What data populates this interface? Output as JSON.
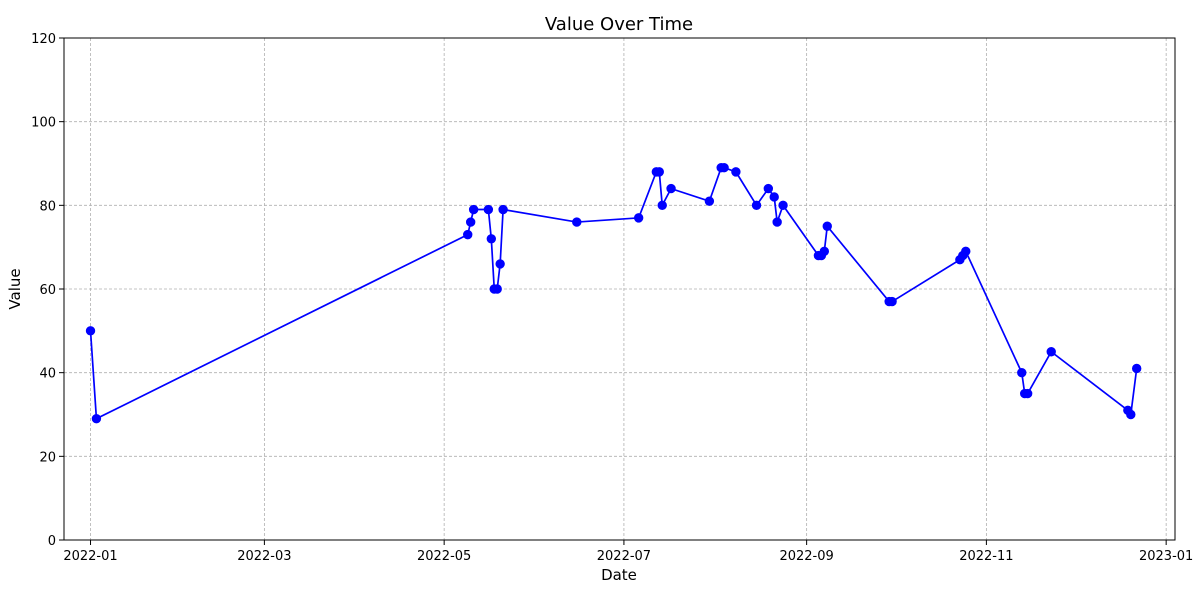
{
  "chart_data": {
    "type": "line",
    "title": "Value Over Time",
    "xlabel": "Date",
    "ylabel": "Value",
    "x_axis_type": "date",
    "xlim": [
      "2021-12-23",
      "2023-01-04"
    ],
    "ylim": [
      0,
      120
    ],
    "x_ticks": [
      "2022-01-01",
      "2022-03-01",
      "2022-05-01",
      "2022-07-01",
      "2022-09-01",
      "2022-11-01",
      "2023-01-01"
    ],
    "x_tick_labels": [
      "2022-01",
      "2022-03",
      "2022-05",
      "2022-07",
      "2022-09",
      "2022-11",
      "2023-01"
    ],
    "y_ticks": [
      0,
      20,
      40,
      60,
      80,
      100,
      120
    ],
    "y_tick_labels": [
      "0",
      "20",
      "40",
      "60",
      "80",
      "100",
      "120"
    ],
    "grid": true,
    "legend": "none",
    "marker": "circle",
    "color": "#0000ff",
    "series": [
      {
        "x": [
          "2022-01-01",
          "2022-01-03",
          "2022-05-09",
          "2022-05-10",
          "2022-05-11",
          "2022-05-16",
          "2022-05-17",
          "2022-05-18",
          "2022-05-19",
          "2022-05-20",
          "2022-05-21",
          "2022-06-15",
          "2022-07-06",
          "2022-07-12",
          "2022-07-13",
          "2022-07-14",
          "2022-07-17",
          "2022-07-30",
          "2022-08-03",
          "2022-08-04",
          "2022-08-08",
          "2022-08-15",
          "2022-08-19",
          "2022-08-21",
          "2022-08-22",
          "2022-08-24",
          "2022-09-05",
          "2022-09-06",
          "2022-09-07",
          "2022-09-08",
          "2022-09-29",
          "2022-09-30",
          "2022-10-23",
          "2022-10-24",
          "2022-10-25",
          "2022-11-13",
          "2022-11-14",
          "2022-11-15",
          "2022-11-23",
          "2022-12-19",
          "2022-12-20",
          "2022-12-22"
        ],
        "values": [
          50,
          29,
          73,
          76,
          79,
          79,
          72,
          60,
          60,
          66,
          79,
          76,
          77,
          88,
          88,
          80,
          84,
          81,
          89,
          89,
          88,
          80,
          84,
          82,
          76,
          80,
          68,
          68,
          69,
          75,
          57,
          57,
          67,
          68,
          69,
          40,
          35,
          35,
          45,
          31,
          30,
          41
        ]
      }
    ]
  }
}
